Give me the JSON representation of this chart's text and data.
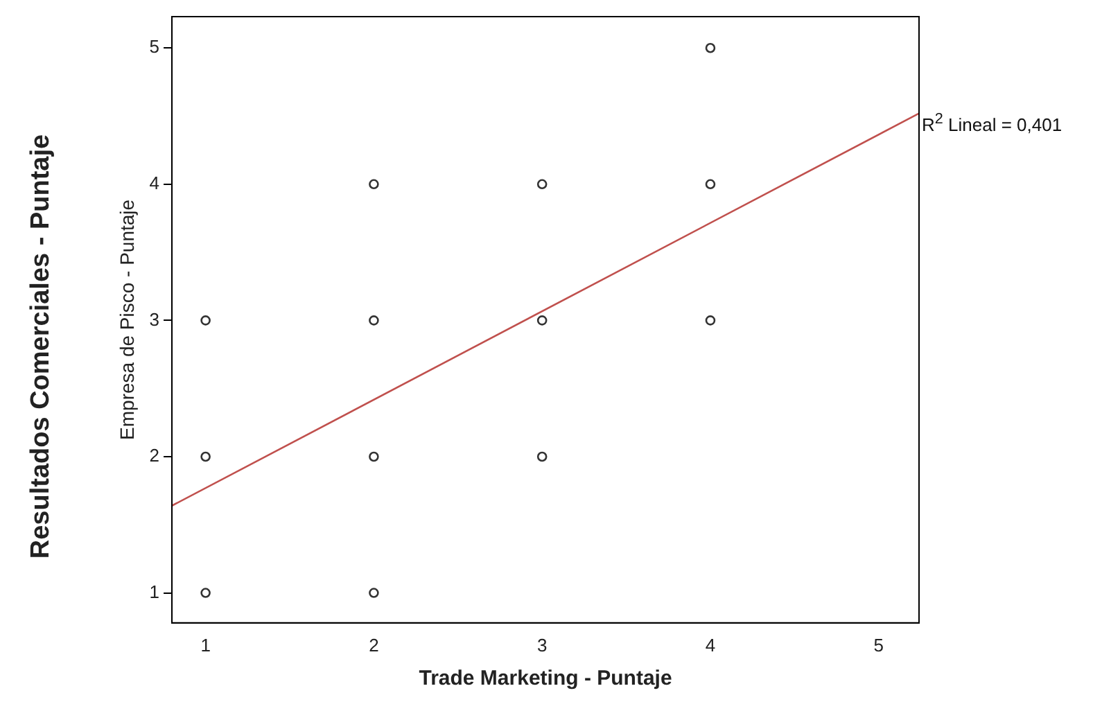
{
  "chart_data": {
    "type": "scatter",
    "xlabel": "Trade Marketing - Puntaje",
    "ylabel": "Empresa de Pisco - Puntaje",
    "xlim": [
      0.8,
      5.24
    ],
    "ylim": [
      0.78,
      5.23
    ],
    "xticks": [
      1,
      2,
      3,
      4,
      5
    ],
    "yticks": [
      1,
      2,
      3,
      4,
      5
    ],
    "grid": false,
    "legend": false,
    "marker": "circle",
    "series": [
      {
        "color": "#333333",
        "x": [
          1,
          1,
          1,
          2,
          2,
          2,
          2,
          3,
          3,
          3,
          4,
          4,
          4
        ],
        "values": [
          1,
          2,
          3,
          1,
          2,
          3,
          4,
          2,
          3,
          4,
          3,
          4,
          5
        ]
      },
      {
        "type": "line",
        "marker": "none",
        "color": "#c0504d",
        "x": [
          0.8,
          5.24
        ],
        "values": [
          1.64,
          4.52
        ]
      }
    ],
    "annotations": [
      {
        "text": "R$^{2}$ Lineal = 0,401",
        "x": 5.24,
        "y": 4.52
      },
      "Resultados Comerciales - Puntaje"
    ]
  }
}
